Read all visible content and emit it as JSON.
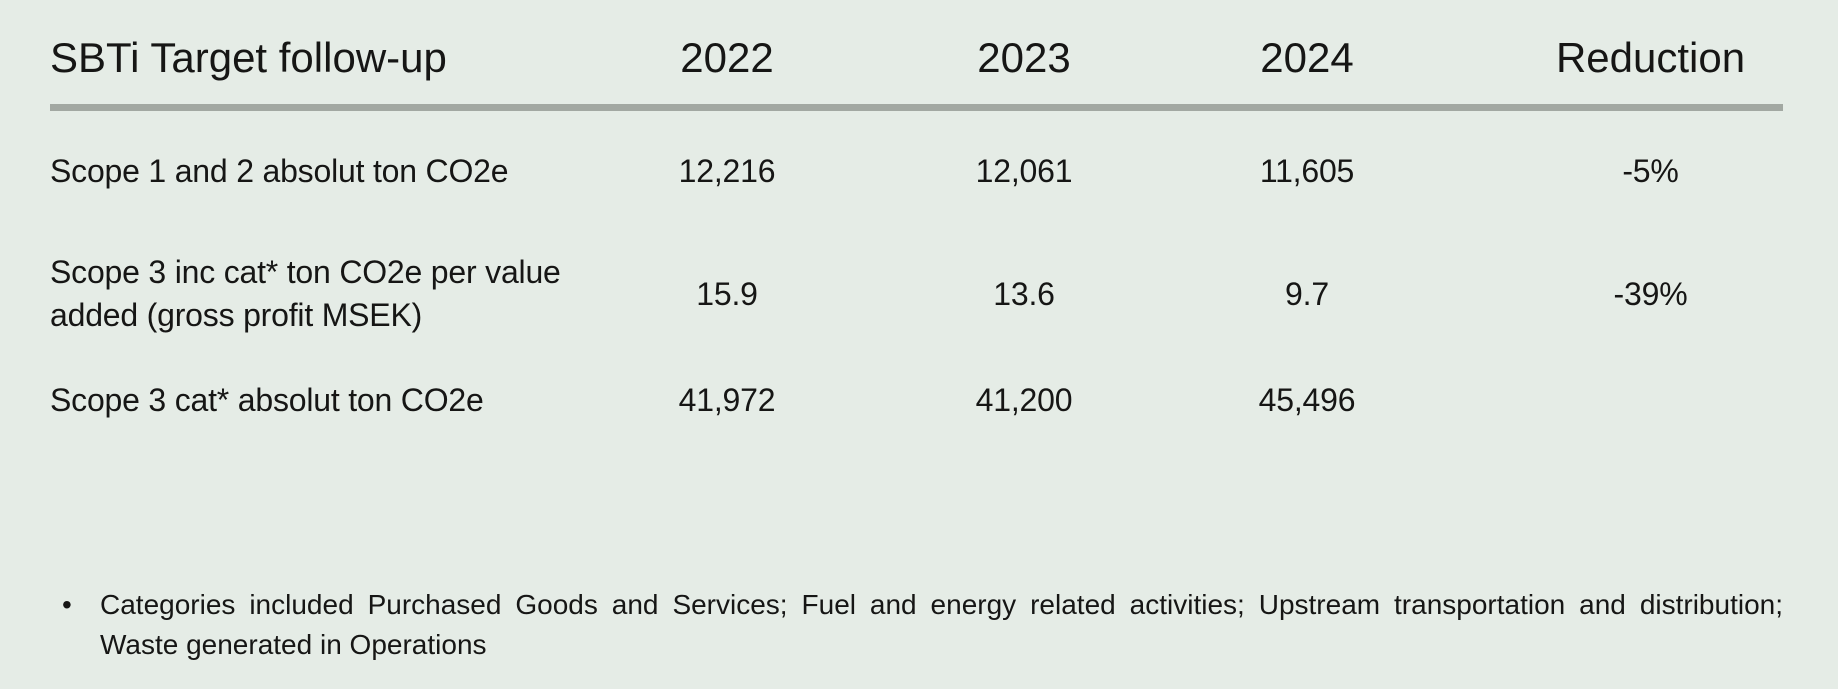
{
  "colors": {
    "background": "#e5ece6",
    "divider": "#a2a8a2",
    "text": "#161615"
  },
  "table": {
    "title": "SBTi Target follow-up",
    "columns": [
      "2022",
      "2023",
      "2024",
      "Reduction"
    ],
    "rows": [
      {
        "label": "Scope 1 and 2 absolut ton CO2e",
        "values": [
          "12,216",
          "12,061",
          "11,605",
          "-5%"
        ]
      },
      {
        "label": "Scope 3 inc cat* ton CO2e per value added (gross profit MSEK)",
        "values": [
          "15.9",
          "13.6",
          "9.7",
          "-39%"
        ]
      },
      {
        "label": "Scope 3 cat* absolut ton CO2e",
        "values": [
          "41,972",
          "41,200",
          "45,496",
          ""
        ]
      }
    ]
  },
  "footnote": {
    "bullet": "•",
    "line1": "Categories included Purchased Goods and Services; Fuel and energy related activities; Upstream transportation and distribution;",
    "line2": "Waste generated in Operations"
  }
}
